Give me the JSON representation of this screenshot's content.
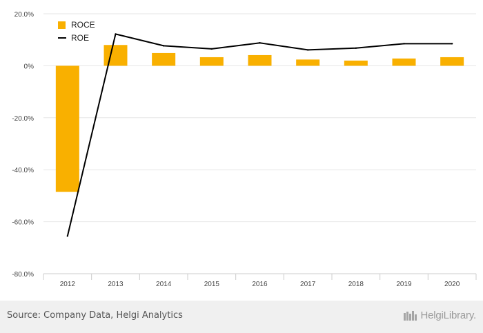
{
  "chart_data": {
    "type": "bar+line",
    "categories": [
      "2012",
      "2013",
      "2014",
      "2015",
      "2016",
      "2017",
      "2018",
      "2019",
      "2020"
    ],
    "series": [
      {
        "name": "ROCE",
        "type": "bar",
        "color": "#f9b000",
        "values": [
          -48.5,
          8.0,
          4.9,
          3.3,
          4.1,
          2.4,
          2.0,
          2.8,
          3.3
        ]
      },
      {
        "name": "ROE",
        "type": "line",
        "color": "#000000",
        "values": [
          -65.5,
          12.2,
          7.7,
          6.5,
          8.8,
          6.1,
          6.8,
          8.5,
          8.5
        ]
      }
    ],
    "ylim": [
      -80,
      20
    ],
    "yticks": [
      20,
      0,
      -20,
      -40,
      -60,
      -80
    ],
    "ytick_labels": [
      "20.0%",
      "0%",
      "-20.0%",
      "-40.0%",
      "-60.0%",
      "-80.0%"
    ],
    "legend_position": "top-left",
    "grid": true
  },
  "footer": {
    "source": "Source: Company Data, Helgi Analytics",
    "brand": "HelgiLibrary."
  }
}
